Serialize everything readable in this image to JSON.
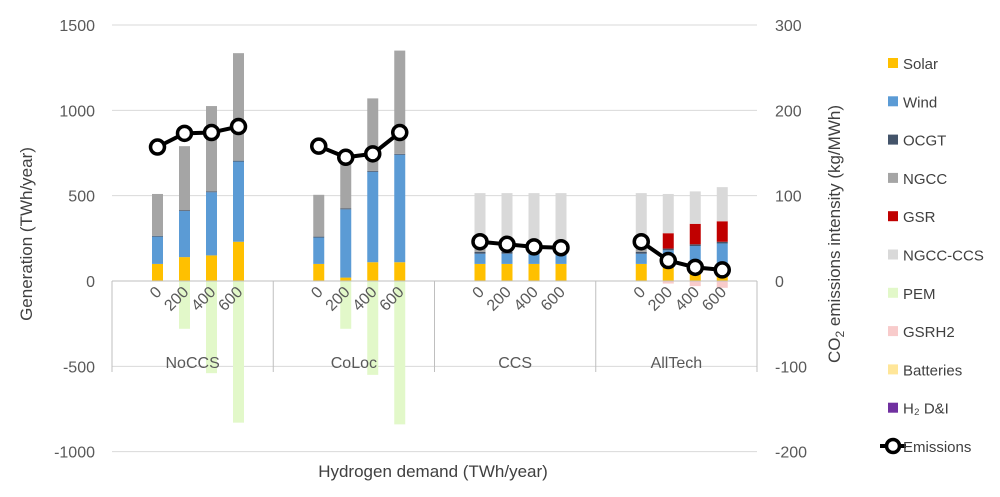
{
  "chart_data": {
    "type": "bar",
    "subtype": "stacked-bar-with-line-secondary-axis",
    "groups": [
      {
        "name": "NoCCS",
        "categories": [
          "0",
          "200",
          "400",
          "600"
        ]
      },
      {
        "name": "CoLoc",
        "categories": [
          "0",
          "200",
          "400",
          "600"
        ]
      },
      {
        "name": "CCS",
        "categories": [
          "0",
          "200",
          "400",
          "600"
        ]
      },
      {
        "name": "AllTech",
        "categories": [
          "0",
          "200",
          "400",
          "600"
        ]
      }
    ],
    "xlabel": "Hydrogen demand (TWh/year)",
    "ylabel": "Generation (TWh/year)",
    "y2label_parts": {
      "pre": "CO",
      "sub": "2",
      "post": " emissions intensity (kg/MWh)"
    },
    "ylim": [
      -1000,
      1500
    ],
    "y2lim": [
      -200,
      300
    ],
    "yticks": [
      "-1000",
      "-500",
      "0",
      "500",
      "1000",
      "1500"
    ],
    "y2ticks": [
      "-200",
      "-100",
      "0",
      "100",
      "200",
      "300"
    ],
    "grid": "horizontal",
    "legend_position": "right",
    "series": [
      {
        "name": "Solar",
        "color": "#FFC000",
        "values": [
          100,
          140,
          150,
          230,
          100,
          20,
          110,
          110,
          100,
          100,
          100,
          100,
          100,
          90,
          90,
          100
        ]
      },
      {
        "name": "Wind",
        "color": "#5B9BD5",
        "values": [
          160,
          270,
          370,
          470,
          155,
          400,
          530,
          630,
          60,
          60,
          60,
          60,
          60,
          90,
          115,
          120
        ]
      },
      {
        "name": "OCGT",
        "color": "#44546A",
        "values": [
          5,
          5,
          5,
          5,
          5,
          5,
          5,
          5,
          10,
          10,
          10,
          10,
          10,
          10,
          10,
          10
        ]
      },
      {
        "name": "NGCC",
        "color": "#A5A5A5",
        "values": [
          245,
          375,
          500,
          630,
          245,
          310,
          425,
          605,
          20,
          20,
          20,
          20,
          20,
          0,
          0,
          0
        ]
      },
      {
        "name": "GSR",
        "color": "#C00000",
        "values": [
          0,
          0,
          0,
          0,
          0,
          0,
          0,
          0,
          0,
          0,
          0,
          0,
          0,
          90,
          120,
          120
        ]
      },
      {
        "name": "NGCC-CCS",
        "color": "#D9D9D9",
        "values": [
          0,
          0,
          0,
          0,
          0,
          0,
          0,
          0,
          325,
          325,
          325,
          325,
          325,
          230,
          190,
          200
        ]
      },
      {
        "name": "PEM",
        "color": "#E2F8C9",
        "values": [
          0,
          -280,
          -540,
          -830,
          0,
          -280,
          -550,
          -840,
          0,
          0,
          0,
          0,
          0,
          0,
          0,
          0
        ]
      },
      {
        "name": "GSRH2",
        "color": "#F8CBCB",
        "values": [
          0,
          0,
          0,
          0,
          0,
          0,
          0,
          0,
          0,
          0,
          0,
          0,
          0,
          -15,
          -30,
          -40
        ]
      },
      {
        "name": "Batteries",
        "color": "#FFE699",
        "values": [
          0,
          0,
          0,
          0,
          0,
          0,
          0,
          0,
          0,
          0,
          0,
          0,
          0,
          0,
          0,
          0
        ]
      },
      {
        "name": "H₂ D&I",
        "color": "#7030A0",
        "values": [
          0,
          0,
          0,
          0,
          0,
          0,
          0,
          0,
          0,
          0,
          0,
          0,
          0,
          0,
          0,
          0
        ]
      }
    ],
    "line_series": {
      "name": "Emissions",
      "axis": "secondary",
      "values": [
        157,
        173,
        174,
        181,
        158,
        145,
        149,
        174,
        46,
        43,
        40,
        39,
        46,
        24,
        16,
        13
      ]
    }
  }
}
